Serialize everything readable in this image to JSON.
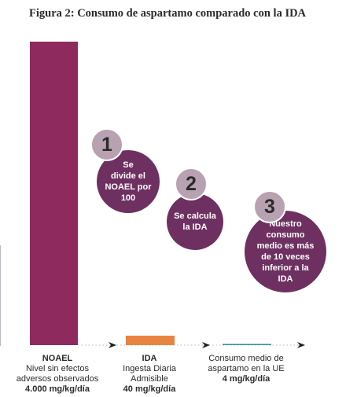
{
  "figure": {
    "title": "Figura 2: Consumo de aspartamo comparado con la IDA"
  },
  "chart_data": {
    "type": "bar",
    "title": "Figura 2: Consumo de aspartamo comparado con la IDA",
    "categories": [
      "NOAEL",
      "IDA",
      "Consumo medio de aspartamo en la UE"
    ],
    "unit": "mg/kg/día",
    "values": [
      4000,
      40,
      4
    ],
    "colors": [
      "#8e2a5e",
      "#e8843f",
      "#2e8ea0"
    ],
    "labels": [
      {
        "name": "NOAEL",
        "desc1": "Nivel sin efectos",
        "desc2": "adversos observados",
        "value": "4.000 mg/kg/día"
      },
      {
        "name": "IDA",
        "desc1": "Ingesta Diaria",
        "desc2": "Admisible",
        "value": "40 mg/kg/día"
      },
      {
        "name": "",
        "desc1": "Consumo medio de",
        "desc2": "aspartamo en la UE",
        "value": "4 mg/kg/día"
      }
    ]
  },
  "steps": [
    {
      "number": "1",
      "lines": [
        "Se",
        "divide el",
        "NOAEL por",
        "100"
      ]
    },
    {
      "number": "2",
      "lines": [
        "Se calcula",
        "la IDA"
      ]
    },
    {
      "number": "3",
      "lines": [
        "Nuestro",
        "consumo",
        "medio es más",
        "de 10 veces",
        "inferior a la",
        "IDA"
      ]
    }
  ],
  "colors": {
    "bubble": "#6e3060",
    "badge": "#b8a2b2",
    "axis_dots": "#c9c4d2"
  }
}
